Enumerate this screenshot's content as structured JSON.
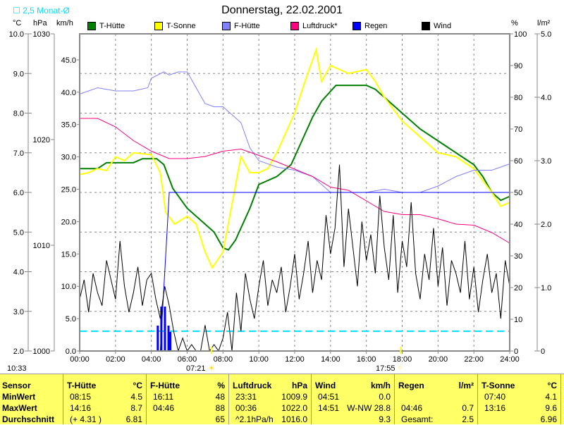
{
  "title": "Donnerstag, 22.02.2001",
  "monat_label": "2,5 Monat-Ø",
  "units": {
    "c": "°C",
    "hpa": "hPa",
    "kmh": "km/h",
    "pct": "%",
    "lm2": "l/m²"
  },
  "time_now": "10:33",
  "sunrise": "07:21",
  "sunset": "17:55",
  "chart_data": {
    "type": "line",
    "title": "Donnerstag, 22.02.2001",
    "x_ticks": [
      "00:00",
      "02:00",
      "04:00",
      "06:00",
      "08:00",
      "10:00",
      "12:00",
      "14:00",
      "16:00",
      "18:00",
      "20:00",
      "22:00",
      "24:00"
    ],
    "xlim": [
      0,
      24
    ],
    "axes": {
      "c": {
        "range": [
          2,
          10
        ],
        "ticks": [
          "2.0",
          "3.0",
          "4.0",
          "5.0",
          "6.0",
          "7.0",
          "8.0",
          "9.0",
          "10.0"
        ]
      },
      "hpa": {
        "range": [
          1000,
          1030
        ],
        "ticks": [
          "1000",
          "1010",
          "1020",
          "1030"
        ]
      },
      "kmh": {
        "range": [
          0,
          49
        ],
        "ticks": [
          "0.0",
          "5.0",
          "10.0",
          "15.0",
          "20.0",
          "25.0",
          "30.0",
          "35.0",
          "40.0",
          "45.0"
        ]
      },
      "pct": {
        "range": [
          0,
          100
        ],
        "ticks": [
          "0",
          "10",
          "20",
          "30",
          "40",
          "50",
          "60",
          "70",
          "80",
          "90",
          "100"
        ]
      },
      "lm2": {
        "range": [
          0,
          5
        ],
        "ticks": [
          "0",
          "1.0",
          "2.0",
          "3.0",
          "4.0",
          "5.0"
        ]
      }
    },
    "monat_avg_c": 2.5,
    "series": [
      {
        "name": "T-Hütte",
        "color": "#008000",
        "axis": "c",
        "points": [
          [
            0,
            6.6
          ],
          [
            1,
            6.6
          ],
          [
            1.5,
            6.75
          ],
          [
            3,
            6.75
          ],
          [
            3.5,
            6.85
          ],
          [
            4.3,
            6.85
          ],
          [
            4.7,
            6.7
          ],
          [
            5.2,
            6.1
          ],
          [
            6,
            5.6
          ],
          [
            7,
            5.2
          ],
          [
            7.5,
            5.0
          ],
          [
            8,
            4.6
          ],
          [
            8.3,
            4.55
          ],
          [
            8.7,
            4.8
          ],
          [
            9.5,
            5.6
          ],
          [
            10,
            6.2
          ],
          [
            11,
            6.4
          ],
          [
            11.8,
            6.7
          ],
          [
            12.5,
            7.4
          ],
          [
            13,
            7.9
          ],
          [
            13.5,
            8.3
          ],
          [
            14.3,
            8.7
          ],
          [
            15,
            8.7
          ],
          [
            16,
            8.7
          ],
          [
            16.5,
            8.6
          ],
          [
            17,
            8.4
          ],
          [
            18,
            8.0
          ],
          [
            19,
            7.6
          ],
          [
            20,
            7.3
          ],
          [
            21,
            7.0
          ],
          [
            22,
            6.7
          ],
          [
            22.5,
            6.4
          ],
          [
            23,
            6.0
          ],
          [
            23.5,
            5.8
          ],
          [
            24,
            5.9
          ]
        ]
      },
      {
        "name": "T-Sonne",
        "color": "#ffff00",
        "axis": "c",
        "points": [
          [
            0,
            6.45
          ],
          [
            0.5,
            6.5
          ],
          [
            1,
            6.6
          ],
          [
            1.5,
            6.55
          ],
          [
            2,
            6.9
          ],
          [
            2.5,
            6.8
          ],
          [
            3,
            7.0
          ],
          [
            4,
            6.95
          ],
          [
            4.5,
            6.5
          ],
          [
            4.8,
            5.5
          ],
          [
            5.3,
            5.2
          ],
          [
            6,
            5.4
          ],
          [
            6.5,
            5.2
          ],
          [
            7,
            4.5
          ],
          [
            7.4,
            4.1
          ],
          [
            8,
            4.5
          ],
          [
            8.5,
            5.7
          ],
          [
            9,
            6.9
          ],
          [
            9.5,
            6.5
          ],
          [
            10,
            6.5
          ],
          [
            10.5,
            6.6
          ],
          [
            11,
            7.0
          ],
          [
            11.5,
            7.5
          ],
          [
            12,
            8.0
          ],
          [
            12.5,
            8.7
          ],
          [
            13.2,
            9.6
          ],
          [
            13.5,
            8.8
          ],
          [
            14,
            9.2
          ],
          [
            15,
            9.0
          ],
          [
            16,
            9.1
          ],
          [
            16.5,
            8.8
          ],
          [
            17,
            8.4
          ],
          [
            18,
            7.8
          ],
          [
            19,
            7.4
          ],
          [
            20,
            7.0
          ],
          [
            21,
            6.9
          ],
          [
            22,
            6.6
          ],
          [
            23,
            6.0
          ],
          [
            23.5,
            5.65
          ],
          [
            24,
            5.75
          ]
        ]
      },
      {
        "name": "F-Hütte",
        "color": "#8080ff",
        "axis": "pct",
        "points": [
          [
            0,
            81
          ],
          [
            1,
            83
          ],
          [
            2,
            82
          ],
          [
            3,
            82
          ],
          [
            3.8,
            83
          ],
          [
            4,
            86
          ],
          [
            4.7,
            88
          ],
          [
            5,
            87
          ],
          [
            5.5,
            88
          ],
          [
            6,
            88
          ],
          [
            6.5,
            83
          ],
          [
            7,
            78
          ],
          [
            7.5,
            77
          ],
          [
            8,
            77
          ],
          [
            9,
            72
          ],
          [
            9.5,
            64
          ],
          [
            10,
            60
          ],
          [
            11,
            58
          ],
          [
            12,
            57
          ],
          [
            13,
            55
          ],
          [
            14,
            50
          ],
          [
            15,
            50
          ],
          [
            16,
            50
          ],
          [
            17,
            51
          ],
          [
            18,
            50
          ],
          [
            19,
            50
          ],
          [
            20,
            52
          ],
          [
            21,
            55
          ],
          [
            22,
            57
          ],
          [
            23,
            57
          ],
          [
            24,
            59
          ]
        ]
      },
      {
        "name": "Luftdruck*",
        "color": "#ff0080",
        "axis": "hpa",
        "points": [
          [
            0,
            1022.0
          ],
          [
            1,
            1022.0
          ],
          [
            2,
            1021.2
          ],
          [
            3,
            1019.9
          ],
          [
            4,
            1018.9
          ],
          [
            5,
            1018.2
          ],
          [
            6,
            1018.2
          ],
          [
            7,
            1018.4
          ],
          [
            8,
            1018.9
          ],
          [
            9,
            1019.1
          ],
          [
            10,
            1018.5
          ],
          [
            11,
            1017.9
          ],
          [
            12,
            1017.2
          ],
          [
            13,
            1016.5
          ],
          [
            14,
            1015.5
          ],
          [
            15,
            1015.2
          ],
          [
            16,
            1014.2
          ],
          [
            17,
            1013.2
          ],
          [
            18,
            1012.9
          ],
          [
            19,
            1012.9
          ],
          [
            20,
            1012.5
          ],
          [
            21,
            1012.0
          ],
          [
            22,
            1011.9
          ],
          [
            23,
            1011.2
          ],
          [
            24,
            1010.2
          ]
        ]
      },
      {
        "name": "Regen",
        "color": "#0000ff",
        "axis": "lm2",
        "points": [
          [
            0,
            0
          ],
          [
            4.5,
            0
          ],
          [
            4.8,
            1.5
          ],
          [
            5.0,
            2.5
          ],
          [
            24,
            2.5
          ]
        ],
        "bars": [
          [
            4.3,
            0.4
          ],
          [
            4.5,
            0.7
          ],
          [
            4.7,
            0.7
          ],
          [
            4.9,
            0.4
          ],
          [
            5.0,
            0.3
          ]
        ]
      },
      {
        "name": "Wind",
        "color": "#000000",
        "axis": "kmh",
        "values": [
          8,
          11,
          6,
          12,
          9,
          7,
          14,
          11,
          8,
          17,
          10,
          6,
          9,
          13,
          7,
          11,
          12,
          8,
          5,
          10,
          7,
          3,
          0,
          2,
          0,
          1,
          0,
          0,
          4,
          0,
          1,
          0,
          2,
          6,
          0,
          9,
          3,
          12,
          8,
          5,
          10,
          14,
          7,
          11,
          9,
          13,
          6,
          10,
          15,
          8,
          12,
          17,
          9,
          14,
          11,
          21,
          15,
          19,
          28.8,
          13,
          22,
          16,
          10,
          20,
          14,
          18,
          12,
          24,
          16,
          11,
          21,
          9,
          17,
          13,
          23,
          12,
          8,
          15,
          11,
          19,
          10,
          16,
          7,
          14,
          12,
          9,
          17,
          8,
          13,
          6,
          11,
          15,
          9,
          12,
          5,
          14,
          10
        ]
      }
    ]
  },
  "stats": {
    "sensor": {
      "head": "Sensor",
      "rows": [
        "MinWert",
        "MaxWert",
        "Durchschnitt"
      ]
    },
    "cols": [
      {
        "name": "T-Hütte",
        "unit": "°C",
        "rows": [
          [
            "08:15",
            "4.5"
          ],
          [
            "14:16",
            "8.7"
          ],
          [
            "(+ 4.31 )",
            "6.81"
          ]
        ]
      },
      {
        "name": "F-Hütte",
        "unit": "%",
        "rows": [
          [
            "16:11",
            "48"
          ],
          [
            "04:46",
            "88"
          ],
          [
            "",
            "65"
          ]
        ]
      },
      {
        "name": "Luftdruck",
        "unit": "hPa",
        "rows": [
          [
            "23:31",
            "1009.9"
          ],
          [
            "00:36",
            "1022.0"
          ],
          [
            "^2.1hPa/h",
            "1016.0"
          ]
        ]
      },
      {
        "name": "Wind",
        "unit": "km/h",
        "rows": [
          [
            "04:51",
            "0.0"
          ],
          [
            "14:51",
            "W-NW 28.8"
          ],
          [
            "",
            "9.3"
          ]
        ]
      },
      {
        "name": "Regen",
        "unit": "l/m²",
        "rows": [
          [
            "",
            ""
          ],
          [
            "04:46",
            "0.7"
          ],
          [
            "Gesamt:",
            "2.5"
          ]
        ]
      },
      {
        "name": "T-Sonne",
        "unit": "°C",
        "rows": [
          [
            "07:40",
            "4.1"
          ],
          [
            "13:16",
            "9.6"
          ],
          [
            "",
            "6.96"
          ]
        ]
      }
    ]
  }
}
